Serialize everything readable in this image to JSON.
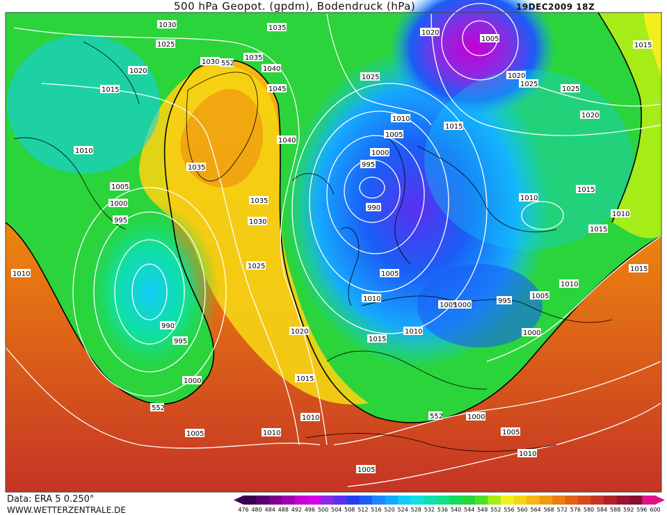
{
  "header": {
    "title": "500 hPa Geopot. (gpdm), Bodendruck (hPa)",
    "datetime": "19DEC2009 18Z"
  },
  "footer": {
    "data_source": "Data: ERA 5 0.250°",
    "website": "WWW.WETTERZENTRALE.DE"
  },
  "colorbar": {
    "ticks": [
      "476",
      "480",
      "484",
      "488",
      "492",
      "496",
      "500",
      "504",
      "508",
      "512",
      "516",
      "520",
      "524",
      "528",
      "532",
      "536",
      "540",
      "544",
      "548",
      "552",
      "556",
      "560",
      "564",
      "568",
      "572",
      "576",
      "580",
      "584",
      "588",
      "592",
      "596",
      "600"
    ],
    "colors": [
      "#3a0050",
      "#5a006e",
      "#7d008f",
      "#a000b0",
      "#c400d2",
      "#d800e6",
      "#8a2be2",
      "#5b2ff0",
      "#2a3cf0",
      "#1a5ef5",
      "#1f86ff",
      "#16a8ff",
      "#12cdf7",
      "#10e0e0",
      "#10dfb0",
      "#12e08a",
      "#14dc5e",
      "#2ad43a",
      "#50e028",
      "#a6ec18",
      "#f2f01c",
      "#f5d414",
      "#f4b910",
      "#f09c10",
      "#ea7d10",
      "#e1601a",
      "#d64a20",
      "#c53425",
      "#b2222a",
      "#9a1530",
      "#880e30",
      "#e01288"
    ]
  },
  "pressure_labels": [
    {
      "text": "1030",
      "name": "isobar-1030"
    },
    {
      "text": "1025",
      "name": "isobar-1025"
    },
    {
      "text": "1020",
      "name": "isobar-1020"
    },
    {
      "text": "1015",
      "name": "isobar-1015"
    },
    {
      "text": "1010",
      "name": "isobar-1010"
    },
    {
      "text": "1005",
      "name": "isobar-1005"
    },
    {
      "text": "1000",
      "name": "isobar-1000"
    },
    {
      "text": "995",
      "name": "isobar-995"
    },
    {
      "text": "990",
      "name": "isobar-990"
    },
    {
      "text": "1035",
      "name": "isobar-1035"
    },
    {
      "text": "1040",
      "name": "isobar-1040"
    },
    {
      "text": "1045",
      "name": "isobar-1045"
    },
    {
      "text": "552",
      "name": "geopot-552"
    }
  ]
}
